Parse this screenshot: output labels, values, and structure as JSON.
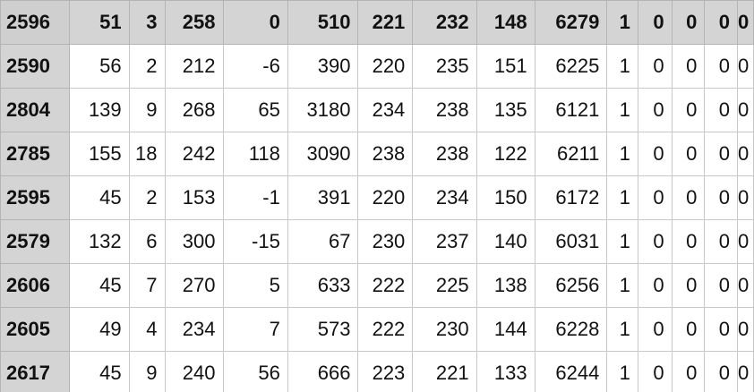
{
  "sheet": {
    "header": [
      "2596",
      "51",
      "3",
      "258",
      "0",
      "510",
      "221",
      "232",
      "148",
      "6279",
      "1",
      "0",
      "0",
      "0",
      "0"
    ],
    "rows": [
      [
        "2590",
        "56",
        "2",
        "212",
        "-6",
        "390",
        "220",
        "235",
        "151",
        "6225",
        "1",
        "0",
        "0",
        "0",
        "0"
      ],
      [
        "2804",
        "139",
        "9",
        "268",
        "65",
        "3180",
        "234",
        "238",
        "135",
        "6121",
        "1",
        "0",
        "0",
        "0",
        "0"
      ],
      [
        "2785",
        "155",
        "18",
        "242",
        "118",
        "3090",
        "238",
        "238",
        "122",
        "6211",
        "1",
        "0",
        "0",
        "0",
        "0"
      ],
      [
        "2595",
        "45",
        "2",
        "153",
        "-1",
        "391",
        "220",
        "234",
        "150",
        "6172",
        "1",
        "0",
        "0",
        "0",
        "0"
      ],
      [
        "2579",
        "132",
        "6",
        "300",
        "-15",
        "67",
        "230",
        "237",
        "140",
        "6031",
        "1",
        "0",
        "0",
        "0",
        "0"
      ],
      [
        "2606",
        "45",
        "7",
        "270",
        "5",
        "633",
        "222",
        "225",
        "138",
        "6256",
        "1",
        "0",
        "0",
        "0",
        "0"
      ],
      [
        "2605",
        "49",
        "4",
        "234",
        "7",
        "573",
        "222",
        "230",
        "144",
        "6228",
        "1",
        "0",
        "0",
        "0",
        "0"
      ],
      [
        "2617",
        "45",
        "9",
        "240",
        "56",
        "666",
        "223",
        "221",
        "133",
        "6244",
        "1",
        "0",
        "0",
        "0",
        "0"
      ]
    ]
  }
}
